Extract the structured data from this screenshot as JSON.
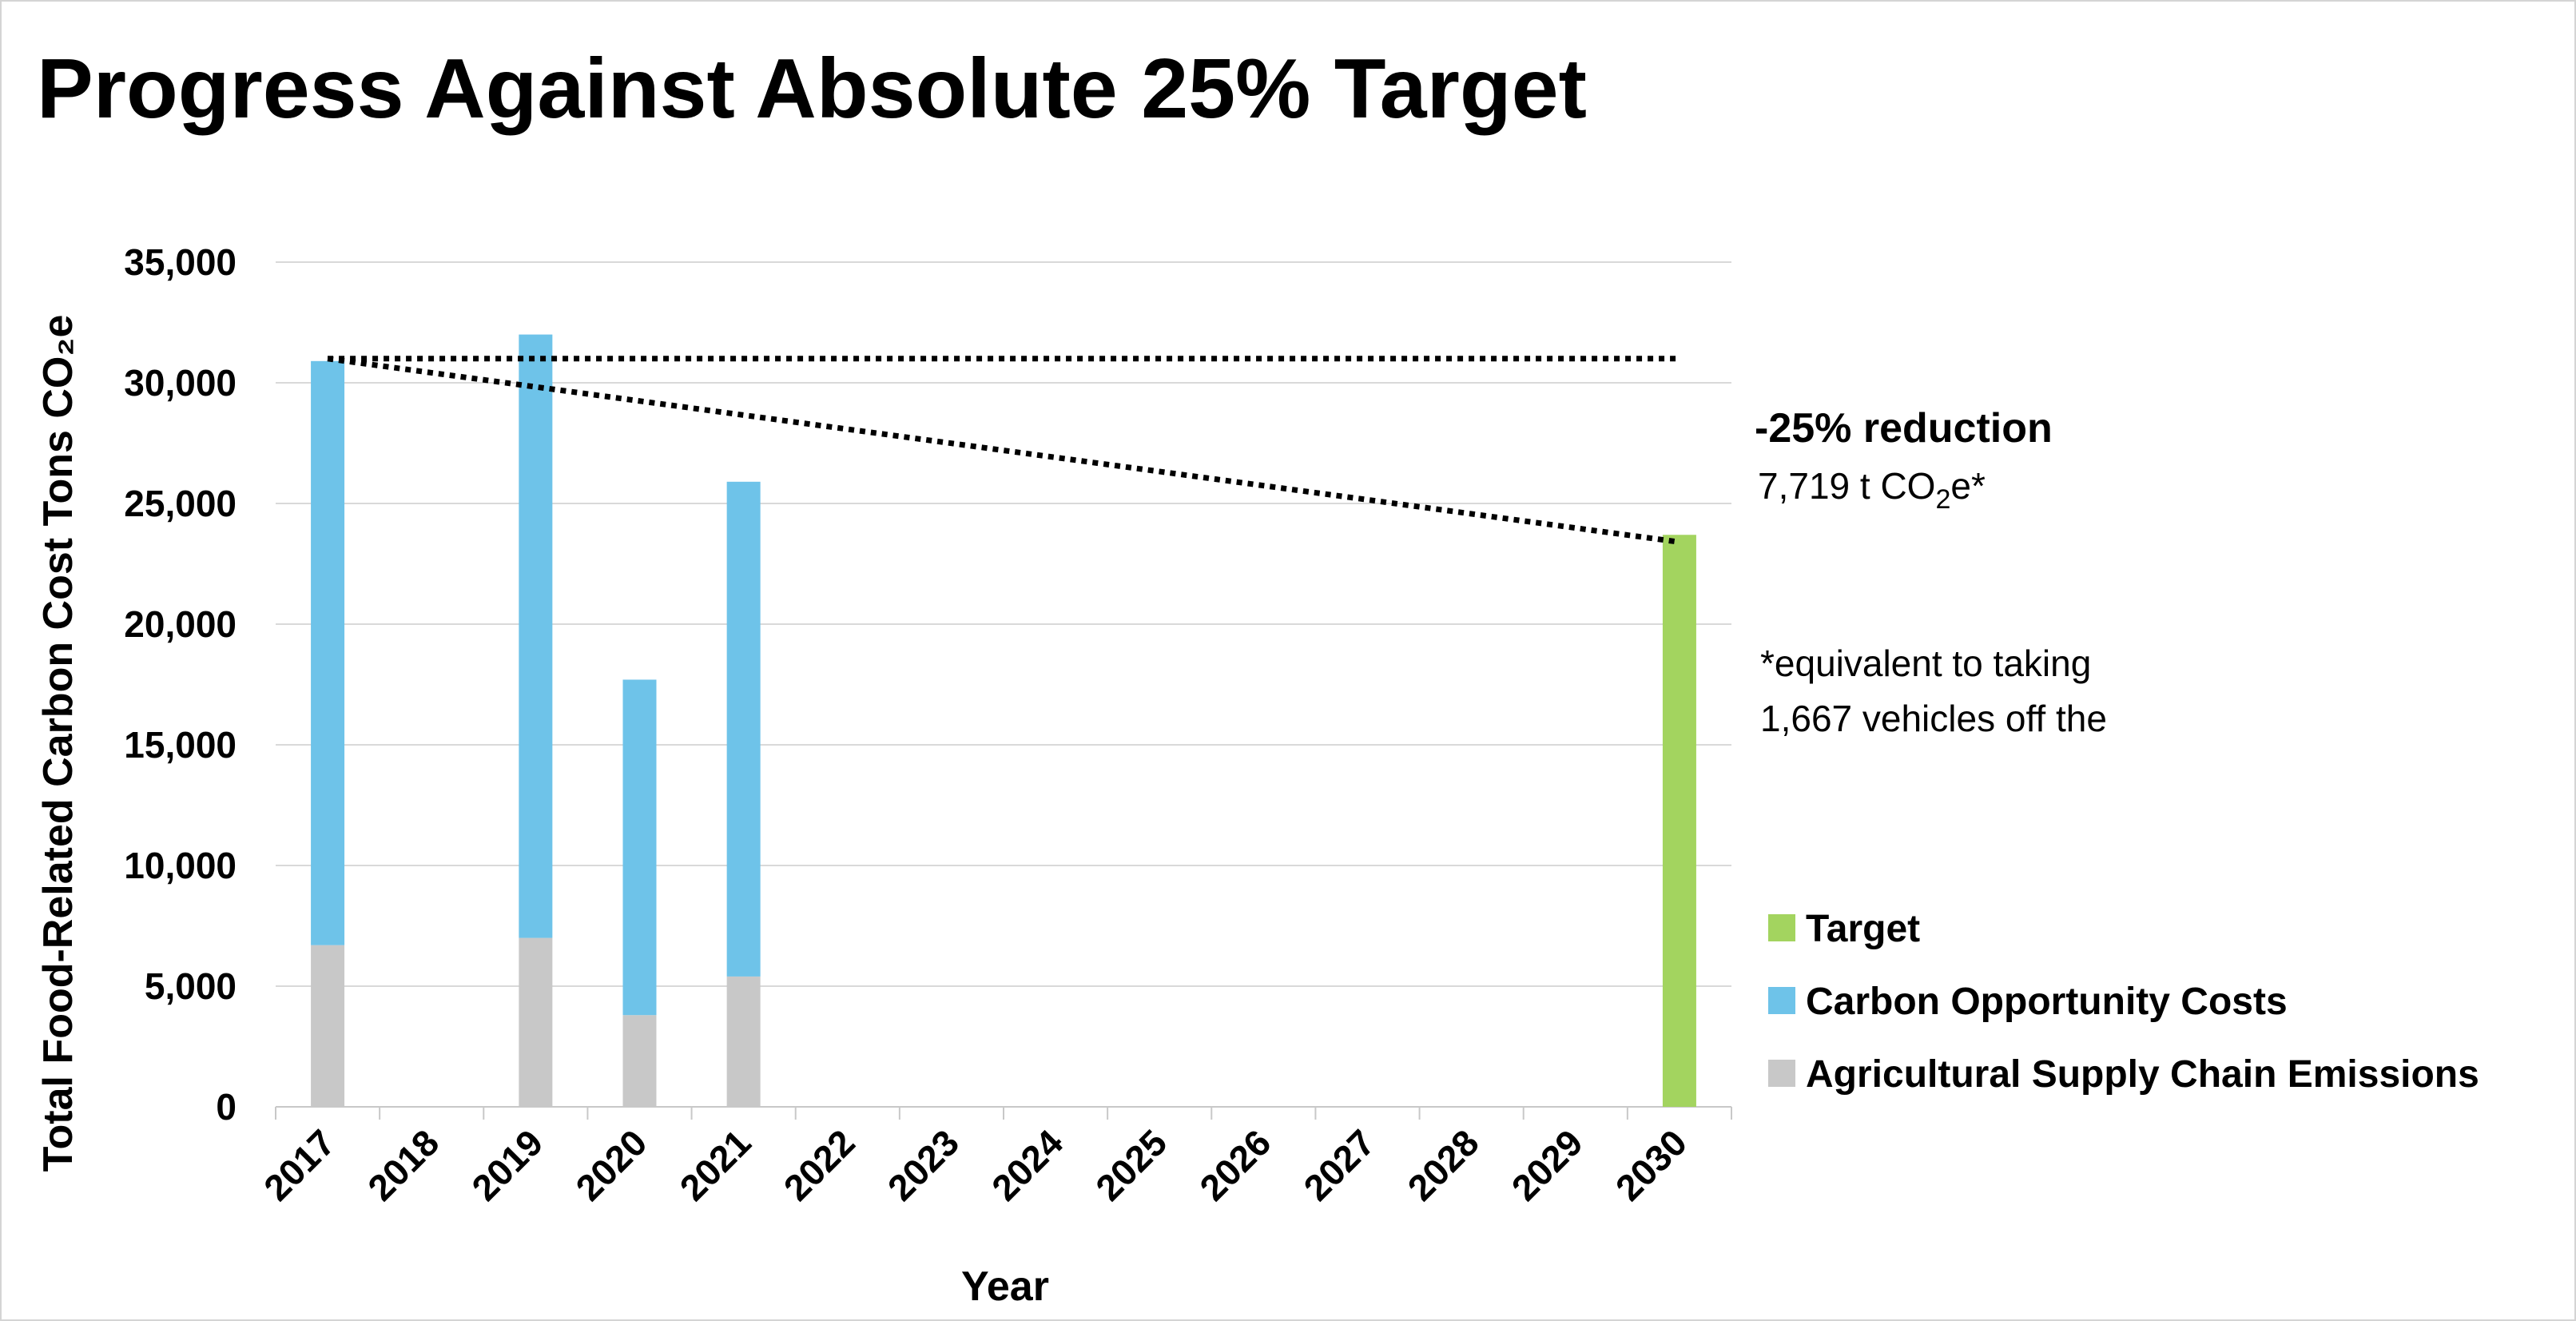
{
  "chart_data": {
    "type": "bar",
    "title": "Progress Against Absolute 25% Target",
    "xlabel": "Year",
    "ylabel": "Total Food-Related Carbon Cost Tons CO₂e",
    "ylim": [
      0,
      35000
    ],
    "yticks": [
      "0",
      "5,000",
      "10,000",
      "15,000",
      "20,000",
      "25,000",
      "30,000",
      "35,000"
    ],
    "ytick_values": [
      0,
      5000,
      10000,
      15000,
      20000,
      25000,
      30000,
      35000
    ],
    "grid": true,
    "categories": [
      "2017",
      "2018",
      "2019",
      "2020",
      "2021",
      "2022",
      "2023",
      "2024",
      "2025",
      "2026",
      "2027",
      "2028",
      "2029",
      "2030"
    ],
    "stacked": true,
    "series": [
      {
        "name": "Agricultural Supply Chain Emissions",
        "color": "#c8c8c8",
        "values": [
          6700,
          0,
          7000,
          3800,
          5400,
          0,
          0,
          0,
          0,
          0,
          0,
          0,
          0,
          0
        ]
      },
      {
        "name": "Carbon Opportunity Costs",
        "color": "#6ec3e9",
        "values": [
          24200,
          0,
          25000,
          13900,
          20500,
          0,
          0,
          0,
          0,
          0,
          0,
          0,
          0,
          0
        ]
      },
      {
        "name": "Target",
        "color": "#a3d45f",
        "values": [
          0,
          0,
          0,
          0,
          0,
          0,
          0,
          0,
          0,
          0,
          0,
          0,
          0,
          23700
        ]
      }
    ],
    "reference_lines": [
      {
        "style": "dotted",
        "from": [
          "2017",
          31000
        ],
        "to": [
          "2030",
          31000
        ]
      },
      {
        "style": "dotted",
        "from": [
          "2017",
          31000
        ],
        "to": [
          "2030",
          23400
        ]
      }
    ],
    "annotations": {
      "reduction_title": "-25% reduction",
      "reduction_value_prefix": "7,719 t CO",
      "reduction_value_sub": "2",
      "reduction_value_suffix": "e*",
      "footnote_line1": "*equivalent to taking",
      "footnote_line2": "1,667 vehicles off the"
    },
    "legend": {
      "placement": "right",
      "entries": [
        {
          "name": "Target",
          "color": "#a3d45f"
        },
        {
          "name": "Carbon Opportunity Costs",
          "color": "#6ec3e9"
        },
        {
          "name": "Agricultural Supply Chain Emissions",
          "color": "#c8c8c8"
        }
      ]
    }
  }
}
